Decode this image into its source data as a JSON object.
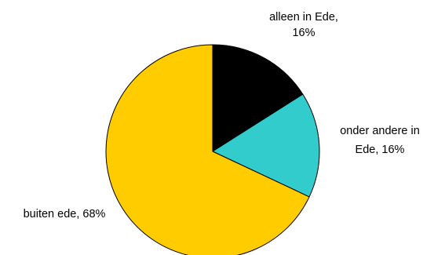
{
  "chart_data": {
    "type": "pie",
    "title": "",
    "start_angle_deg": 0,
    "direction": "clockwise",
    "slices": [
      {
        "label_lines": [
          "alleen in Ede,",
          "16%"
        ],
        "category": "alleen in Ede",
        "value": 16,
        "color": "#000000"
      },
      {
        "label_lines": [
          "onder andere in",
          "Ede, 16%"
        ],
        "category": "onder andere in Ede",
        "value": 16,
        "color": "#33CCCC"
      },
      {
        "label_lines": [
          "buiten ede, 68%"
        ],
        "category": "buiten ede",
        "value": 68,
        "color": "#FFCC00"
      }
    ],
    "slice_stroke": "#000000",
    "legend": "none"
  }
}
